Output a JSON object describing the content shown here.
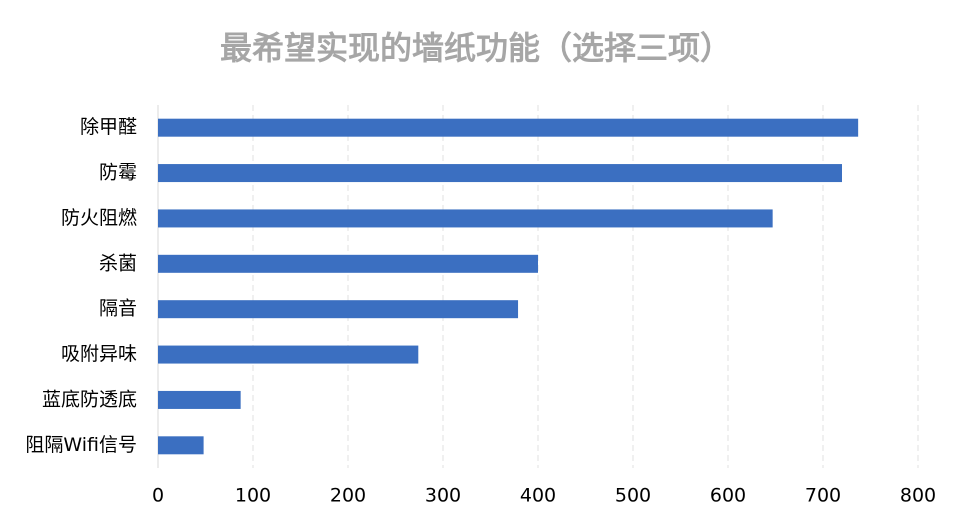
{
  "chart_data": {
    "type": "bar",
    "orientation": "horizontal",
    "title": "最希望实现的墙纸功能（选择三项）",
    "categories": [
      "除甲醛",
      "防霉",
      "防火阻燃",
      "杀菌",
      "隔音",
      "吸附异味",
      "蓝底防透底",
      "阻隔Wifi信号"
    ],
    "values": [
      737,
      720,
      647,
      400,
      379,
      274,
      87,
      48
    ],
    "color": "#3b6fc1",
    "xlim": [
      0,
      800
    ],
    "xticks": [
      0,
      100,
      200,
      300,
      400,
      500,
      600,
      700,
      800
    ],
    "grid": true
  }
}
